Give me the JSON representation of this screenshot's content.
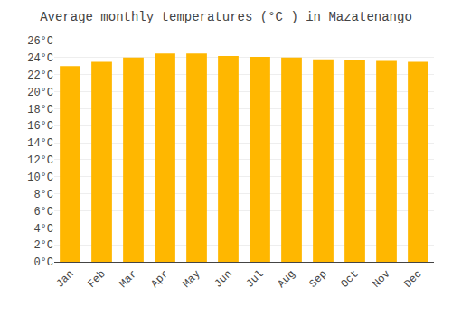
{
  "chart_data": {
    "type": "bar",
    "title": "Average monthly temperatures (°C ) in Mazatenango",
    "categories": [
      "Jan",
      "Feb",
      "Mar",
      "Apr",
      "May",
      "Jun",
      "Jul",
      "Aug",
      "Sep",
      "Oct",
      "Nov",
      "Dec"
    ],
    "values": [
      23.0,
      23.5,
      24.0,
      24.5,
      24.5,
      24.2,
      24.1,
      24.0,
      23.8,
      23.7,
      23.6,
      23.5
    ],
    "color": "#FFB700",
    "ylim": [
      0,
      26
    ],
    "yticks": [
      {
        "value": 0,
        "label": "0°C"
      },
      {
        "value": 2,
        "label": "2°C"
      },
      {
        "value": 4,
        "label": "4°C"
      },
      {
        "value": 6,
        "label": "6°C"
      },
      {
        "value": 8,
        "label": "8°C"
      },
      {
        "value": 10,
        "label": "10°C"
      },
      {
        "value": 12,
        "label": "12°C"
      },
      {
        "value": 14,
        "label": "14°C"
      },
      {
        "value": 16,
        "label": "16°C"
      },
      {
        "value": 18,
        "label": "18°C"
      },
      {
        "value": 20,
        "label": "20°C"
      },
      {
        "value": 22,
        "label": "22°C"
      },
      {
        "value": 24,
        "label": "24°C"
      },
      {
        "value": 26,
        "label": "26°C"
      }
    ],
    "grid": true
  }
}
